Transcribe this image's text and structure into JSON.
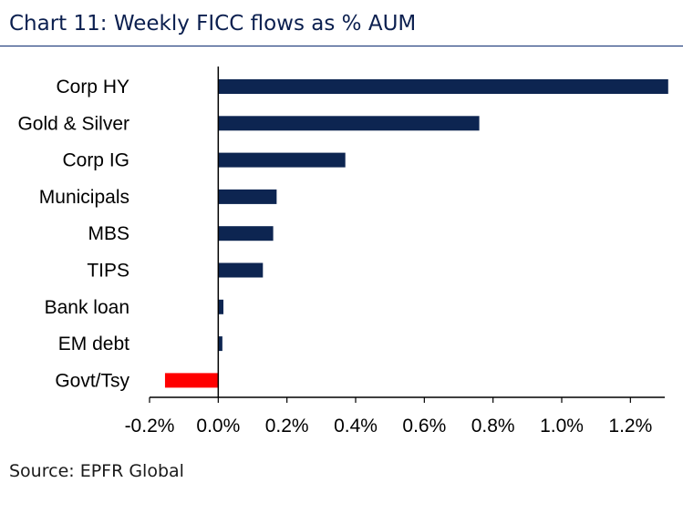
{
  "title": "Chart 11: Weekly FICC flows as % AUM",
  "source": "Source: EPFR Global",
  "chart_data": {
    "type": "bar",
    "orientation": "horizontal",
    "title": "Chart 11: Weekly FICC flows as % AUM",
    "xlabel": "",
    "ylabel": "",
    "categories": [
      "Corp HY",
      "Gold & Silver",
      "Corp IG",
      "Municipals",
      "MBS",
      "TIPS",
      "Bank loan",
      "EM debt",
      "Govt/Tsy"
    ],
    "values": [
      1.31,
      0.76,
      0.37,
      0.17,
      0.16,
      0.13,
      0.015,
      0.012,
      -0.155
    ],
    "xlim": [
      -0.2,
      1.3
    ],
    "xticks": [
      -0.2,
      0.0,
      0.2,
      0.4,
      0.6,
      0.8,
      1.0,
      1.2
    ],
    "xtick_labels": [
      "-0.2%",
      "0.0%",
      "0.2%",
      "0.4%",
      "0.6%",
      "0.8%",
      "1.0%",
      "1.2%"
    ],
    "grid": false,
    "colors": {
      "positive": "#0d2551",
      "negative": "#ff0000",
      "axis": "#000000",
      "title": "#0b1f4f"
    }
  }
}
